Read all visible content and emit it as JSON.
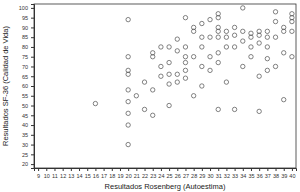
{
  "chart_data": {
    "type": "scatter",
    "x_label": "Resultados Rosenberg (Autoestima)",
    "y_label": "Resultados SF-36 (Calidad de Vida)",
    "x": [
      16,
      20,
      20,
      20,
      20,
      20,
      20,
      20,
      20,
      20,
      21,
      22,
      22,
      23,
      23,
      23,
      23,
      24,
      24,
      24,
      25,
      25,
      25,
      25,
      25,
      26,
      26,
      26,
      26,
      27,
      27,
      27,
      27,
      27,
      27,
      28,
      28,
      28,
      28,
      29,
      29,
      29,
      29,
      29,
      30,
      30,
      30,
      30,
      31,
      31,
      31,
      31,
      31,
      31,
      31,
      31,
      32,
      32,
      32,
      32,
      33,
      33,
      33,
      33,
      34,
      34,
      34,
      34,
      35,
      35,
      35,
      35,
      36,
      36,
      36,
      36,
      36,
      37,
      37,
      37,
      37,
      37,
      38,
      38,
      38,
      38,
      39,
      39,
      39,
      39,
      40,
      40,
      40,
      40,
      40
    ],
    "values": [
      51,
      94,
      75,
      68,
      66,
      58,
      52,
      46,
      40,
      30,
      55,
      62,
      48,
      77,
      75,
      58,
      45,
      80,
      70,
      65,
      80,
      72,
      66,
      61,
      50,
      84,
      78,
      66,
      62,
      95,
      80,
      75,
      72,
      68,
      64,
      90,
      88,
      75,
      55,
      92,
      85,
      80,
      70,
      60,
      94,
      85,
      75,
      68,
      97,
      95,
      90,
      88,
      85,
      77,
      72,
      48,
      88,
      85,
      80,
      62,
      90,
      86,
      80,
      48,
      100,
      88,
      83,
      70,
      87,
      85,
      80,
      75,
      88,
      86,
      82,
      65,
      47,
      88,
      85,
      80,
      74,
      68,
      98,
      93,
      85,
      70,
      90,
      88,
      77,
      53,
      97,
      95,
      93,
      88,
      75
    ],
    "color": "#4d4d4d",
    "marker": "open-circle",
    "grid": false,
    "xlim": [
      8.5,
      40.5
    ],
    "xticks": [
      9,
      10,
      11,
      12,
      13,
      14,
      15,
      16,
      17,
      18,
      19,
      20,
      21,
      22,
      23,
      24,
      25,
      26,
      27,
      28,
      29,
      30,
      31,
      32,
      33,
      34,
      35,
      36,
      37,
      38,
      39,
      40
    ],
    "ylim": [
      18,
      102
    ],
    "yticks": [
      20,
      25,
      30,
      35,
      40,
      45,
      50,
      55,
      60,
      65,
      70,
      75,
      80,
      85,
      90,
      95,
      100
    ]
  }
}
